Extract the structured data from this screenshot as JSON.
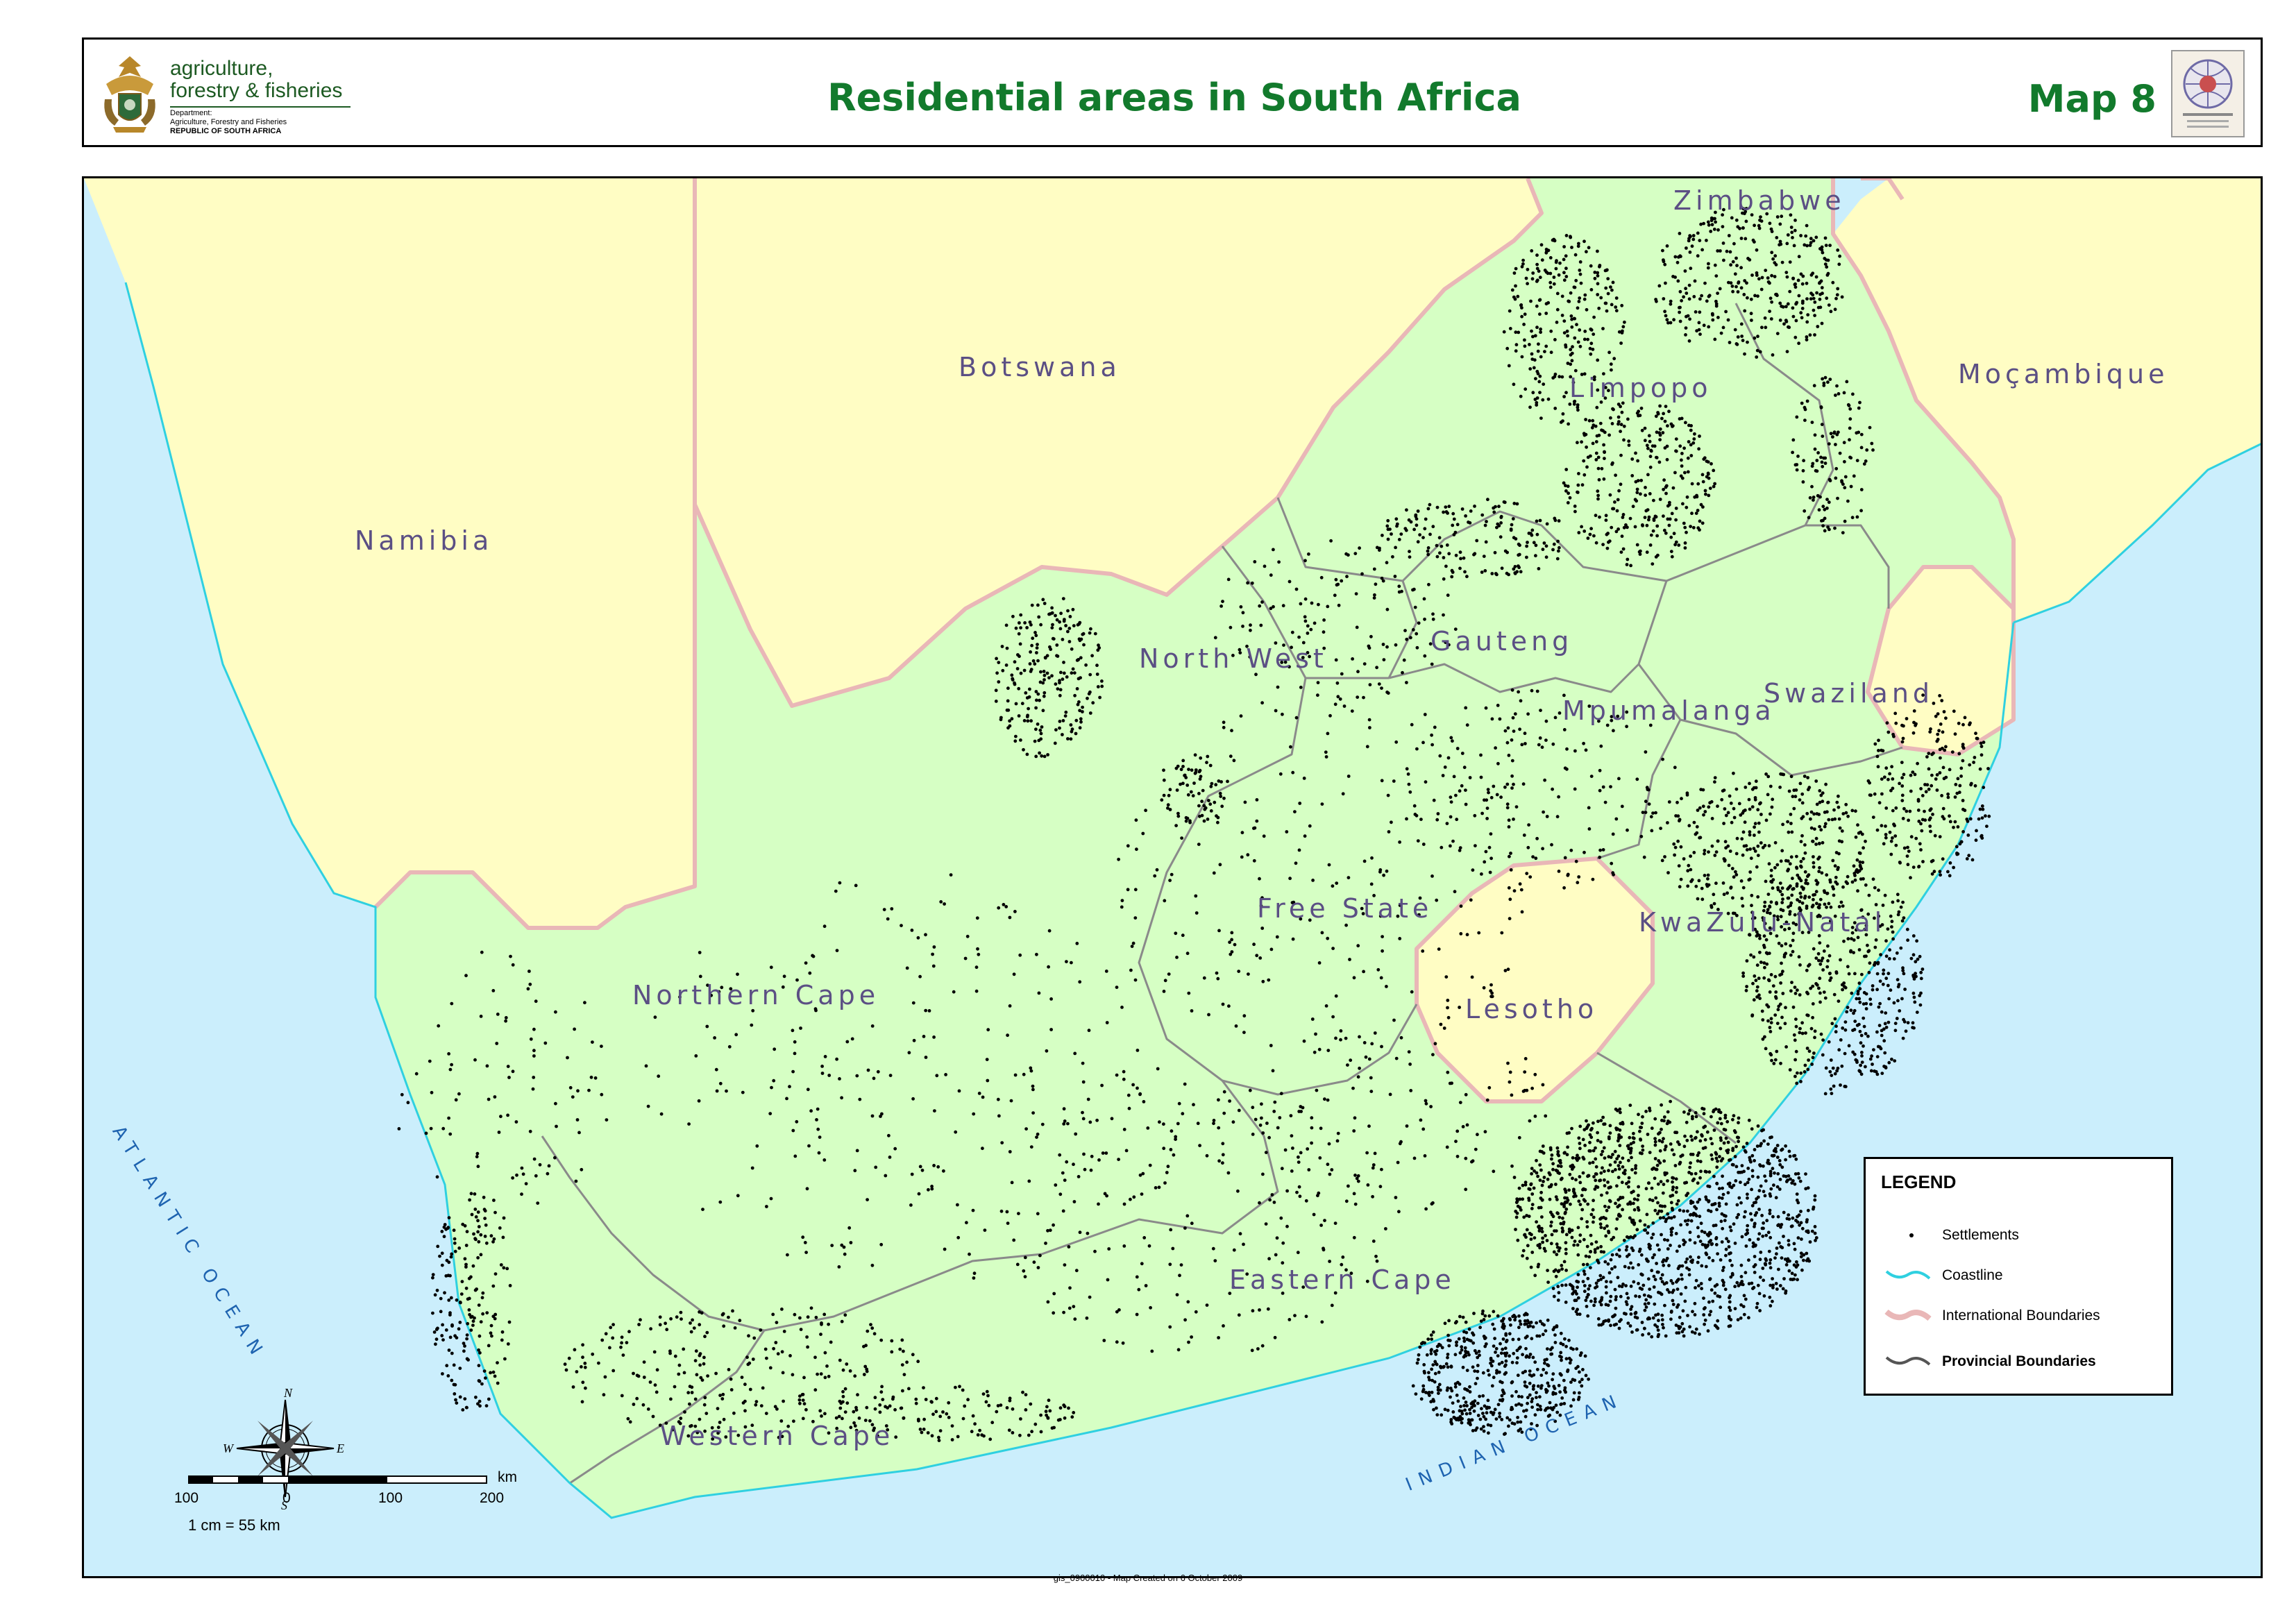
{
  "header": {
    "dept_line1": "agriculture,",
    "dept_line2": "forestry & fisheries",
    "dept_line3": "Department:",
    "dept_line4": "Agriculture, Forestry and Fisheries",
    "dept_line5": "REPUBLIC OF SOUTH AFRICA",
    "title": "Residential areas in South Africa",
    "map_number": "Map 8"
  },
  "map": {
    "countries": [
      "Zimbabwe",
      "Botswana",
      "Namibia",
      "Moçambique",
      "Swaziland",
      "Lesotho"
    ],
    "provinces": [
      "Limpopo",
      "North West",
      "Gauteng",
      "Mpumalanga",
      "Free State",
      "KwaZulu-Natal",
      "Northern Cape",
      "Eastern Cape",
      "Western Cape"
    ],
    "oceans": [
      "ATLANTIC OCEAN",
      "INDIAN OCEAN"
    ],
    "colors": {
      "ocean": "#cbeefc",
      "neighbour": "#fffdc4",
      "south_africa": "#d6ffc4",
      "international_boundary": "#e9b7b7",
      "provincial_boundary": "#8a8a8a",
      "coastline": "#2fd0e0",
      "settlement": "#000000"
    }
  },
  "legend": {
    "title": "LEGEND",
    "items": [
      {
        "label": "Settlements",
        "symbol": "settlement-dot-icon"
      },
      {
        "label": "Coastline",
        "symbol": "coastline-line-icon"
      },
      {
        "label": "International Boundaries",
        "symbol": "international-boundary-line-icon"
      },
      {
        "label": "Provincial Boundaries",
        "symbol": "provincial-boundary-line-icon"
      }
    ]
  },
  "scale": {
    "ticks": [
      "100",
      "0",
      "100",
      "200"
    ],
    "unit": "km",
    "ratio": "1 cm = 55 km"
  },
  "compass": {
    "n": "N",
    "e": "E",
    "s": "S",
    "w": "W"
  },
  "footer": "gis_0900010 - Map Created on 6 October 2009"
}
